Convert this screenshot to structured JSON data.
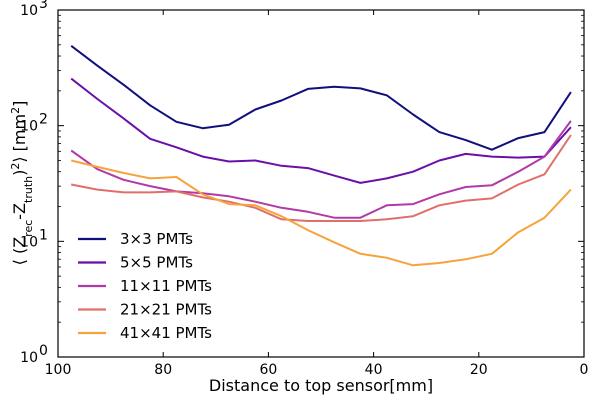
{
  "chart_data": {
    "type": "line",
    "xlabel": "Distance to top sensor[mm]",
    "ylabel_parts": [
      "⟨ (Z",
      "rec",
      "-Z",
      "truth",
      ")",
      "2",
      "⟩ [mm",
      "2",
      "]"
    ],
    "xlim": [
      100,
      0
    ],
    "ylim": [
      1,
      1000
    ],
    "y_scale": "log",
    "x_ticks": [
      100,
      80,
      60,
      40,
      20,
      0
    ],
    "x_tick_labels": [
      "100",
      "80",
      "60",
      "40",
      "20",
      "0"
    ],
    "y_ticks": [
      1,
      10,
      100,
      1000
    ],
    "y_tick_labels": [
      {
        "base": "10",
        "exp": "0"
      },
      {
        "base": "10",
        "exp": "1"
      },
      {
        "base": "10",
        "exp": "2"
      },
      {
        "base": "10",
        "exp": "3"
      }
    ],
    "legend_position": "lower-left",
    "x": [
      97.5,
      92.5,
      87.5,
      82.5,
      77.5,
      72.5,
      67.5,
      62.5,
      57.5,
      52.5,
      47.5,
      42.5,
      37.5,
      32.5,
      27.5,
      22.5,
      17.5,
      12.5,
      7.5,
      2.5
    ],
    "series": [
      {
        "name": "3×3 PMTs",
        "color": "#10107a",
        "values": [
          490,
          330,
          225,
          150,
          108,
          95,
          102,
          138,
          165,
          208,
          217,
          210,
          183,
          125,
          88,
          75,
          62,
          78,
          88,
          195
        ]
      },
      {
        "name": "5×5 PMTs",
        "color": "#6a0fa8",
        "values": [
          255,
          170,
          115,
          77,
          65,
          54,
          49,
          50,
          45,
          43,
          37,
          32,
          35,
          40,
          50,
          57,
          54,
          53,
          54,
          97
        ]
      },
      {
        "name": "11×11 PMTs",
        "color": "#b23aa6",
        "values": [
          61,
          42,
          34,
          30,
          27,
          26,
          24.5,
          22,
          19.5,
          18,
          16,
          16,
          20.5,
          21,
          25.5,
          29.5,
          30.5,
          40,
          54,
          110
        ]
      },
      {
        "name": "21×21 PMTs",
        "color": "#e06f6a",
        "values": [
          31,
          28,
          26.5,
          26.5,
          27,
          24,
          22,
          19.5,
          15.5,
          15,
          15,
          15,
          15.5,
          16.5,
          20.5,
          22.5,
          23.5,
          31,
          38,
          83
        ]
      },
      {
        "name": "41×41 PMTs",
        "color": "#f6a33c",
        "values": [
          50,
          44,
          39,
          35,
          36,
          25.5,
          21,
          20.5,
          16.5,
          12.5,
          9.8,
          7.8,
          7.2,
          6.2,
          6.5,
          7,
          7.8,
          12,
          16,
          28
        ]
      }
    ]
  }
}
